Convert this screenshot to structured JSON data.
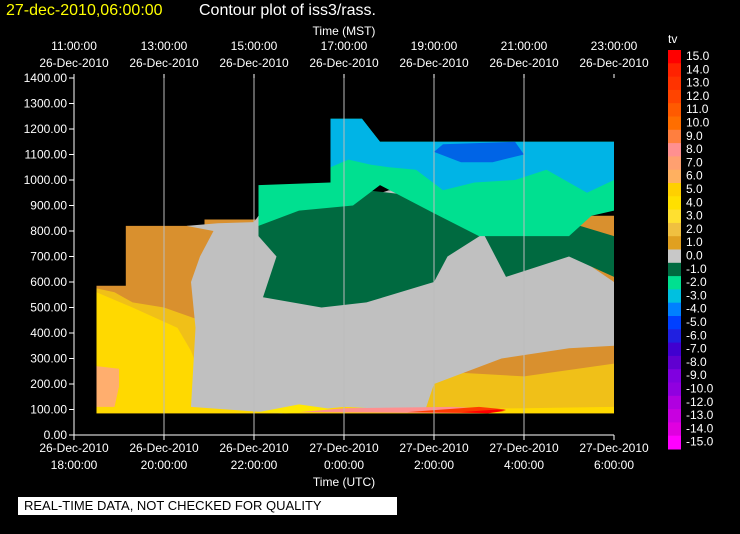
{
  "header": {
    "date_label": "27-dec-2010,06:00:00",
    "title": "Contour plot of iss3/rass."
  },
  "disclaimer": "REAL-TIME DATA, NOT CHECKED FOR QUALITY",
  "chart_data": {
    "type": "heatmap",
    "x_top_label": "Time (MST)",
    "x_bottom_label": "Time (UTC)",
    "x_range_hours": [
      0,
      12
    ],
    "top_ticks": [
      {
        "t": 0,
        "time": "11:00:00",
        "date": "26-Dec-2010"
      },
      {
        "t": 2,
        "time": "13:00:00",
        "date": "26-Dec-2010"
      },
      {
        "t": 4,
        "time": "15:00:00",
        "date": "26-Dec-2010"
      },
      {
        "t": 6,
        "time": "17:00:00",
        "date": "26-Dec-2010"
      },
      {
        "t": 8,
        "time": "19:00:00",
        "date": "26-Dec-2010"
      },
      {
        "t": 10,
        "time": "21:00:00",
        "date": "26-Dec-2010"
      },
      {
        "t": 12,
        "time": "23:00:00",
        "date": "26-Dec-2010"
      }
    ],
    "bottom_ticks": [
      {
        "t": 0,
        "date": "26-Dec-2010",
        "time": "18:00:00"
      },
      {
        "t": 2,
        "date": "26-Dec-2010",
        "time": "20:00:00"
      },
      {
        "t": 4,
        "date": "26-Dec-2010",
        "time": "22:00:00"
      },
      {
        "t": 6,
        "date": "27-Dec-2010",
        "time": "0:00:00"
      },
      {
        "t": 8,
        "date": "27-Dec-2010",
        "time": "2:00:00"
      },
      {
        "t": 10,
        "date": "27-Dec-2010",
        "time": "4:00:00"
      },
      {
        "t": 12,
        "date": "27-Dec-2010",
        "time": "6:00:00"
      }
    ],
    "y_range": [
      0,
      1400
    ],
    "y_ticks": [
      "0.00",
      "100.00",
      "200.00",
      "300.00",
      "400.00",
      "500.00",
      "600.00",
      "700.00",
      "800.00",
      "900.00",
      "1000.00",
      "1100.00",
      "1200.00",
      "1300.00",
      "1400.00"
    ],
    "grid": true,
    "colorbar": {
      "title": "tv",
      "labels": [
        "15.0",
        "14.0",
        "13.0",
        "12.0",
        "11.0",
        "10.0",
        "9.0",
        "8.0",
        "7.0",
        "6.0",
        "5.0",
        "4.0",
        "3.0",
        "2.0",
        "1.0",
        "0.0",
        "-1.0",
        "-2.0",
        "-3.0",
        "-4.0",
        "-5.0",
        "-6.0",
        "-7.0",
        "-8.0",
        "-9.0",
        "-10.0",
        "-12.0",
        "-13.0",
        "-14.0",
        "-15.0"
      ],
      "colors": [
        "#ff0000",
        "#ff2200",
        "#ff3300",
        "#ff4400",
        "#ff5a00",
        "#ff6e00",
        "#ff7f3f",
        "#ff9090",
        "#ffa070",
        "#ffb060",
        "#ffd000",
        "#ffe000",
        "#ffe030",
        "#f0c040",
        "#e0a020",
        "#c8c8c8",
        "#006a40",
        "#00e090",
        "#00c0e0",
        "#0080ff",
        "#0040ff",
        "#2020e0",
        "#4000d0",
        "#6000d0",
        "#8000e0",
        "#9000e0",
        "#b000e0",
        "#c800e0",
        "#e000e0",
        "#ff00ff"
      ]
    },
    "contour_layers": [
      {
        "value": "1.0",
        "color": "#d9902e",
        "points": [
          [
            0.5,
            85
          ],
          [
            0.5,
            585
          ],
          [
            1.15,
            585
          ],
          [
            1.15,
            820
          ],
          [
            2.9,
            820
          ],
          [
            2.9,
            845
          ],
          [
            4.1,
            845
          ],
          [
            4.1,
            860
          ],
          [
            6.0,
            860
          ],
          [
            8.0,
            860
          ],
          [
            10.0,
            860
          ],
          [
            11.5,
            860
          ],
          [
            12.0,
            860
          ],
          [
            12.0,
            85
          ]
        ]
      },
      {
        "value": "2.0",
        "color": "#f0c018",
        "points": [
          [
            0.5,
            85
          ],
          [
            0.5,
            575
          ],
          [
            0.9,
            560
          ],
          [
            1.3,
            520
          ],
          [
            2.0,
            500
          ],
          [
            2.8,
            450
          ],
          [
            3.0,
            410
          ],
          [
            3.2,
            385
          ],
          [
            4.1,
            385
          ],
          [
            6.0,
            300
          ],
          [
            8.0,
            250
          ],
          [
            10.0,
            230
          ],
          [
            12.0,
            280
          ],
          [
            12.0,
            85
          ]
        ]
      },
      {
        "value": "3.0",
        "color": "#ffd900",
        "points": [
          [
            0.5,
            85
          ],
          [
            0.5,
            560
          ],
          [
            1.3,
            500
          ],
          [
            2.3,
            420
          ],
          [
            2.6,
            330
          ],
          [
            2.9,
            190
          ],
          [
            4.1,
            120
          ],
          [
            6.0,
            110
          ],
          [
            8.0,
            100
          ],
          [
            10.0,
            105
          ],
          [
            12.0,
            110
          ],
          [
            12.0,
            85
          ]
        ]
      },
      {
        "value": "5.0",
        "color": "#ffae6e",
        "points": [
          [
            0.5,
            110
          ],
          [
            0.9,
            110
          ],
          [
            1.0,
            190
          ],
          [
            1.0,
            260
          ],
          [
            0.5,
            270
          ]
        ]
      },
      {
        "value": "0.0",
        "color": "#c0c0c0",
        "points": [
          [
            2.5,
            820
          ],
          [
            3.1,
            800
          ],
          [
            2.8,
            700
          ],
          [
            2.6,
            600
          ],
          [
            2.7,
            420
          ],
          [
            2.6,
            110
          ],
          [
            4.6,
            85
          ],
          [
            6.0,
            110
          ],
          [
            7.8,
            95
          ],
          [
            8.0,
            200
          ],
          [
            9.5,
            300
          ],
          [
            11.0,
            340
          ],
          [
            12.0,
            350
          ],
          [
            12.0,
            600
          ],
          [
            11.0,
            720
          ],
          [
            10.5,
            830
          ],
          [
            9.0,
            900
          ],
          [
            7.0,
            960
          ],
          [
            5.5,
            870
          ],
          [
            4.1,
            860
          ],
          [
            4.0,
            835
          ],
          [
            3.2,
            830
          ]
        ]
      },
      {
        "value": "-1.0",
        "color": "#006a40",
        "points": [
          [
            4.1,
            890
          ],
          [
            6.5,
            960
          ],
          [
            8.5,
            920
          ],
          [
            10.5,
            860
          ],
          [
            12.0,
            780
          ],
          [
            12.0,
            620
          ],
          [
            11.0,
            700
          ],
          [
            9.6,
            620
          ],
          [
            9.1,
            790
          ],
          [
            8.3,
            700
          ],
          [
            8.0,
            600
          ],
          [
            6.5,
            520
          ],
          [
            5.5,
            500
          ],
          [
            4.2,
            540
          ],
          [
            4.5,
            700
          ],
          [
            4.1,
            780
          ]
        ]
      },
      {
        "value": "-2.0",
        "color": "#00e090",
        "points": [
          [
            4.1,
            980
          ],
          [
            4.1,
            820
          ],
          [
            5.0,
            880
          ],
          [
            6.2,
            900
          ],
          [
            6.8,
            980
          ],
          [
            8.0,
            870
          ],
          [
            9.0,
            780
          ],
          [
            10.0,
            780
          ],
          [
            11.0,
            780
          ],
          [
            11.5,
            860
          ],
          [
            12.0,
            880
          ],
          [
            12.0,
            1150
          ],
          [
            6.8,
            1150
          ],
          [
            6.4,
            1240
          ],
          [
            5.7,
            1240
          ],
          [
            5.7,
            990
          ]
        ]
      },
      {
        "value": "-3.0",
        "color": "#00b4e6",
        "points": [
          [
            5.7,
            1240
          ],
          [
            6.4,
            1240
          ],
          [
            6.8,
            1150
          ],
          [
            12.0,
            1150
          ],
          [
            12.0,
            1000
          ],
          [
            11.4,
            950
          ],
          [
            10.5,
            1040
          ],
          [
            9.8,
            1000
          ],
          [
            8.9,
            990
          ],
          [
            8.2,
            960
          ],
          [
            7.6,
            1040
          ],
          [
            7.0,
            1050
          ],
          [
            6.6,
            1060
          ],
          [
            6.1,
            1080
          ],
          [
            5.7,
            1050
          ]
        ]
      },
      {
        "value": "-4.0",
        "color": "#0064e6",
        "points": [
          [
            8.2,
            1140
          ],
          [
            9.8,
            1150
          ],
          [
            10.0,
            1100
          ],
          [
            9.3,
            1070
          ],
          [
            8.6,
            1070
          ],
          [
            8.0,
            1110
          ]
        ]
      },
      {
        "value": "4.0",
        "color": "#ffe800",
        "points": [
          [
            4.1,
            90
          ],
          [
            5.0,
            120
          ],
          [
            6.0,
            95
          ],
          [
            4.7,
            85
          ]
        ]
      },
      {
        "value": "7.0",
        "color": "#ff9090",
        "points": [
          [
            5.0,
            90
          ],
          [
            6.0,
            105
          ],
          [
            8.4,
            110
          ],
          [
            9.6,
            100
          ],
          [
            9.0,
            85
          ]
        ]
      },
      {
        "value": "12.0",
        "color": "#ff3c00",
        "points": [
          [
            7.4,
            90
          ],
          [
            9.0,
            110
          ],
          [
            9.6,
            100
          ],
          [
            9.2,
            85
          ]
        ]
      },
      {
        "value": "14.0",
        "color": "#ff0000",
        "points": [
          [
            8.6,
            90
          ],
          [
            9.4,
            100
          ],
          [
            9.6,
            95
          ],
          [
            9.2,
            85
          ]
        ]
      }
    ]
  }
}
